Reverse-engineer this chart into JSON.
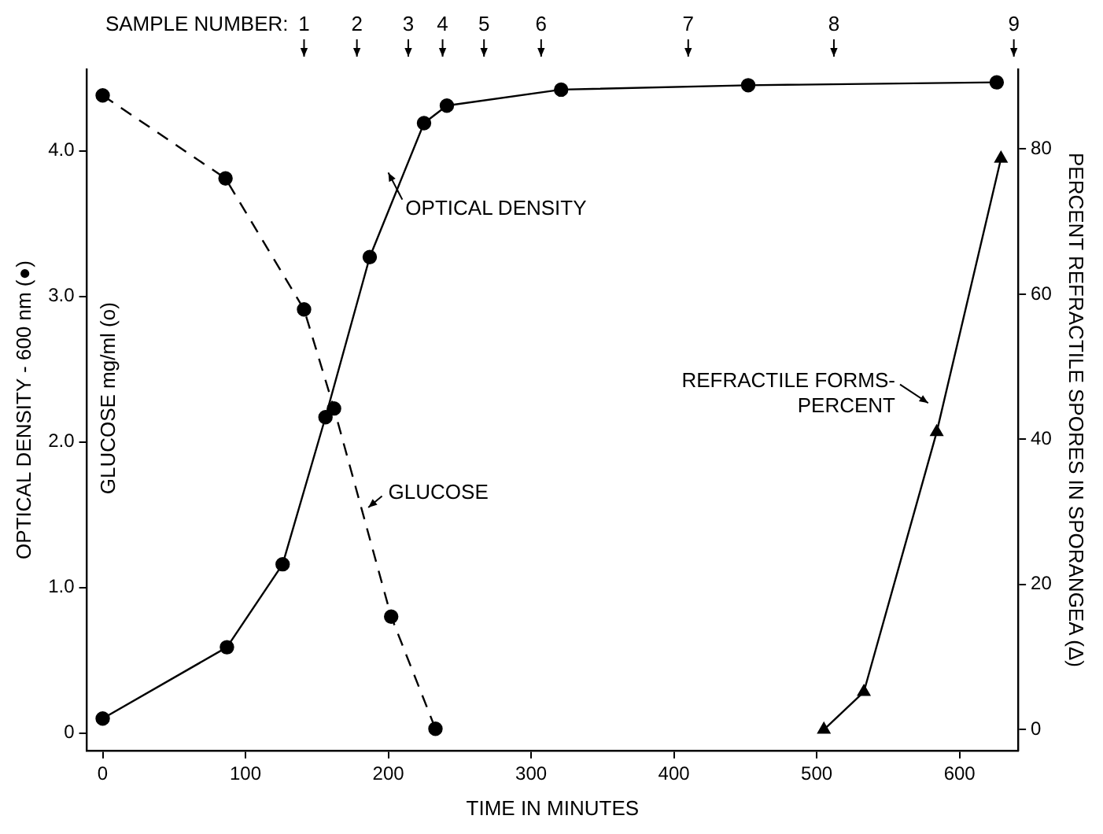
{
  "chart_data": {
    "type": "line",
    "xlabel": "TIME IN MINUTES",
    "ylabel": "OPTICAL DENSITY - 600 nm (●)",
    "y2label": "PERCENT REFRACTILE SPORES IN SPORANGEA (Δ)",
    "series": [
      {
        "color": "#000000",
        "marker": "circle",
        "line_style": "solid",
        "x": [
          0,
          87,
          126,
          156,
          187,
          225,
          241,
          321,
          452,
          626
        ],
        "values": [
          0.1,
          0.59,
          1.16,
          2.17,
          3.27,
          4.19,
          4.31,
          4.42,
          4.45,
          4.47
        ]
      },
      {
        "color": "#000000",
        "marker": "circle",
        "line_style": "dashed",
        "x": [
          0,
          86,
          141,
          162,
          202,
          233
        ],
        "values": [
          4.38,
          3.81,
          2.91,
          2.23,
          0.8,
          0.03
        ]
      },
      {
        "color": "#000000",
        "marker": "triangle",
        "line_style": "solid",
        "axis": "y2",
        "x": [
          505,
          533,
          584,
          629
        ],
        "values": [
          0,
          5.2,
          41,
          78.7
        ]
      }
    ],
    "xlim": [
      -11,
      641
    ],
    "xticks": [
      0,
      100,
      200,
      300,
      400,
      500,
      600
    ],
    "ylim": [
      -0.12,
      4.56
    ],
    "yticks": [
      0,
      {
        "value": 1,
        "label": "1.0"
      },
      {
        "value": 2,
        "label": "2.0"
      },
      {
        "value": 3,
        "label": "3.0"
      },
      {
        "value": 4,
        "label": "4.0"
      }
    ],
    "y2lim": [
      -2.9,
      91
    ],
    "y2ticks": [
      0,
      20,
      40,
      60,
      80
    ],
    "annotations": [
      "SAMPLE NUMBER:",
      "OPTICAL DENSITY",
      "GLUCOSE",
      "REFRACTILE FORMS-\nPERCENT",
      "GLUCOSE mg/ml (o)",
      "1",
      "2",
      "3",
      "4",
      "5",
      "6",
      "7",
      "8",
      "9"
    ],
    "grid": false,
    "legend": false
  }
}
